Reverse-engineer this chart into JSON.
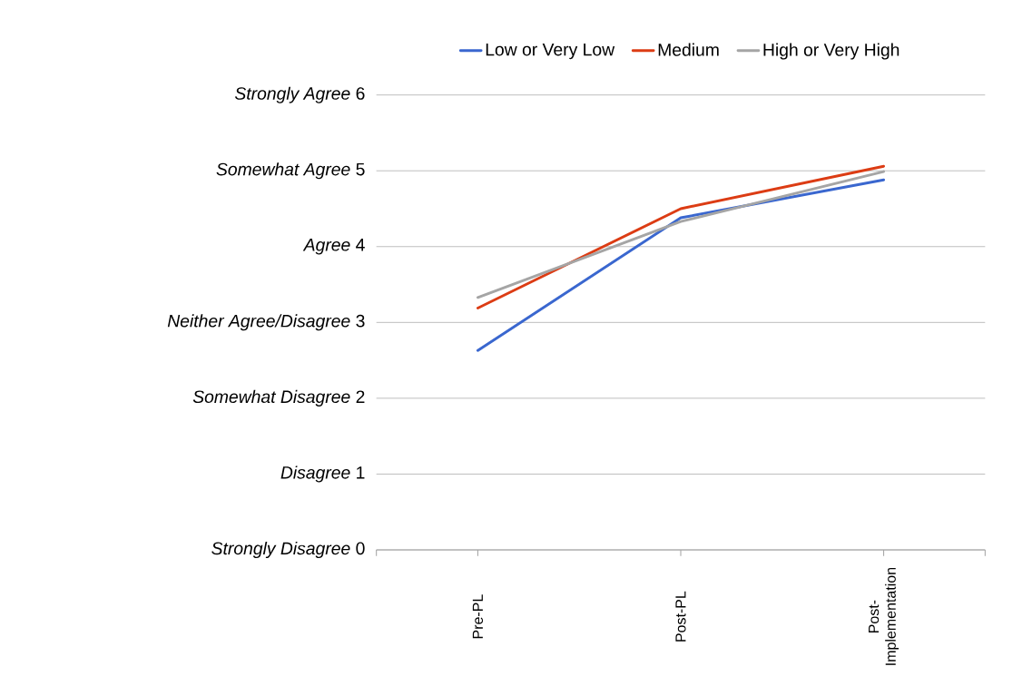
{
  "chart_data": {
    "type": "line",
    "categories": [
      "Pre-PL",
      "Post-PL",
      "Post-Implementation"
    ],
    "series": [
      {
        "name": "Low or Very Low",
        "color": "#3a67cf",
        "values": [
          2.63,
          4.38,
          4.88
        ]
      },
      {
        "name": "Medium",
        "color": "#dc3c14",
        "values": [
          3.19,
          4.5,
          5.06
        ]
      },
      {
        "name": "High or Very High",
        "color": "#a5a5a5",
        "values": [
          3.33,
          4.33,
          4.99
        ]
      }
    ],
    "ylim": [
      0,
      6
    ],
    "yticks": [
      {
        "value": 0,
        "label": "*Strongly Disagree*   0"
      },
      {
        "value": 1,
        "label": "*Disagree*   1"
      },
      {
        "value": 2,
        "label": "*Somewhat Disagree*   2"
      },
      {
        "value": 3,
        "label": "*Neither Agree/Disagree*   3"
      },
      {
        "value": 4,
        "label": "*Agree*   4"
      },
      {
        "value": 5,
        "label": "*Somewhat Agree*   5"
      },
      {
        "value": 6,
        "label": "*Strongly Agree*   6"
      }
    ],
    "grid": "y",
    "legend": "top",
    "marker": "none",
    "line_style": "solid"
  }
}
